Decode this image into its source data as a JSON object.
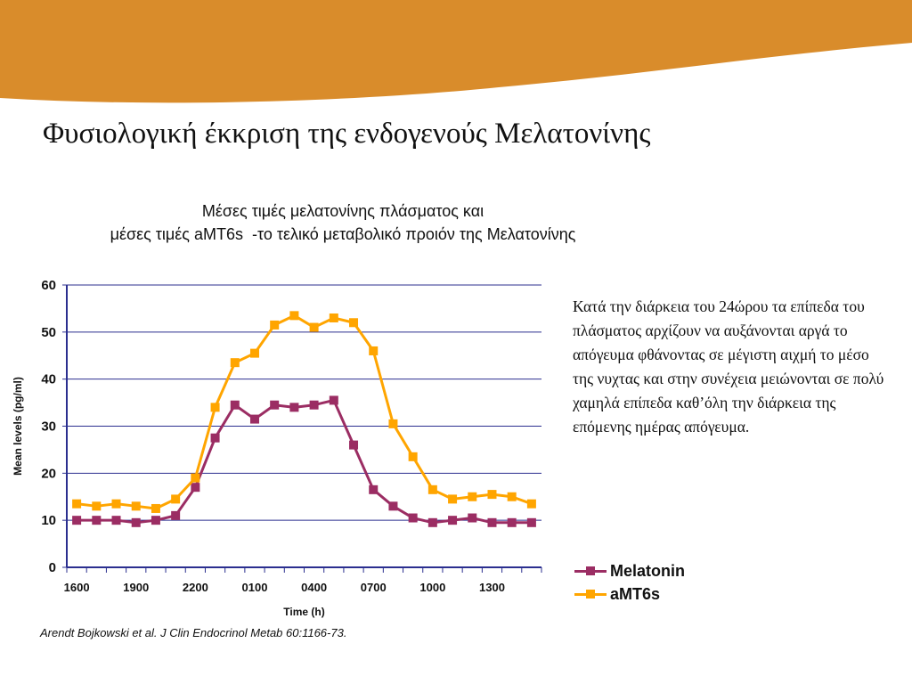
{
  "slide": {
    "title": "Φυσιολογική έκκριση της ενδογενούς Μελατονίνης",
    "description": "Κατά την διάρκεια του 24ώρου τα επίπεδα του πλάσματος αρχίζουν να αυξάνονται αργά το απόγευμα φθάνοντας σε  μέγιστη αιχμή το μέσο της νυχτας και στην συνέχεια μειώνονται σε πολύ χαμηλά επίπεδα καθ’όλη την διάρκεια της επόμενης ημέρας απόγευμα.",
    "citation": "Arendt Bojkowski et al. J Clin Endocrinol Metab 60:1166-73.",
    "banner_color": "#d98c2b"
  },
  "chart_data": {
    "type": "line",
    "title_lines": [
      "Μέσες τιμές μελατονίνης πλάσματος και",
      "μέσες τιμές aMT6s  -το τελικό μεταβολικό προιόν της Μελατονίνης"
    ],
    "xlabel": "Time (h)",
    "ylabel": "Mean levels (pg/ml)",
    "ylim": [
      0,
      60
    ],
    "yticks": [
      0,
      10,
      20,
      30,
      40,
      50,
      60
    ],
    "grid": true,
    "legend_position": "bottom-right",
    "x_tick_labels": [
      "1600",
      "1900",
      "2200",
      "0100",
      "0400",
      "0700",
      "1000",
      "1300"
    ],
    "x_tick_label_every": 3,
    "num_points": 24,
    "series": [
      {
        "name": "Melatonin",
        "color": "#9b2d63",
        "values": [
          10,
          10,
          10,
          9.5,
          10,
          11,
          17,
          27.5,
          34.5,
          31.5,
          34.5,
          34,
          34.5,
          35.5,
          26,
          16.5,
          13,
          10.5,
          9.5,
          10,
          10.5,
          9.5,
          9.5,
          9.5
        ]
      },
      {
        "name": "aMT6s",
        "color": "#ffa500",
        "values": [
          13.5,
          13,
          13.5,
          13,
          12.5,
          14.5,
          19,
          34,
          43.5,
          45.5,
          51.5,
          53.5,
          51,
          53,
          52,
          46,
          30.5,
          23.5,
          16.5,
          14.5,
          15,
          15.5,
          15,
          13.5
        ]
      }
    ]
  }
}
